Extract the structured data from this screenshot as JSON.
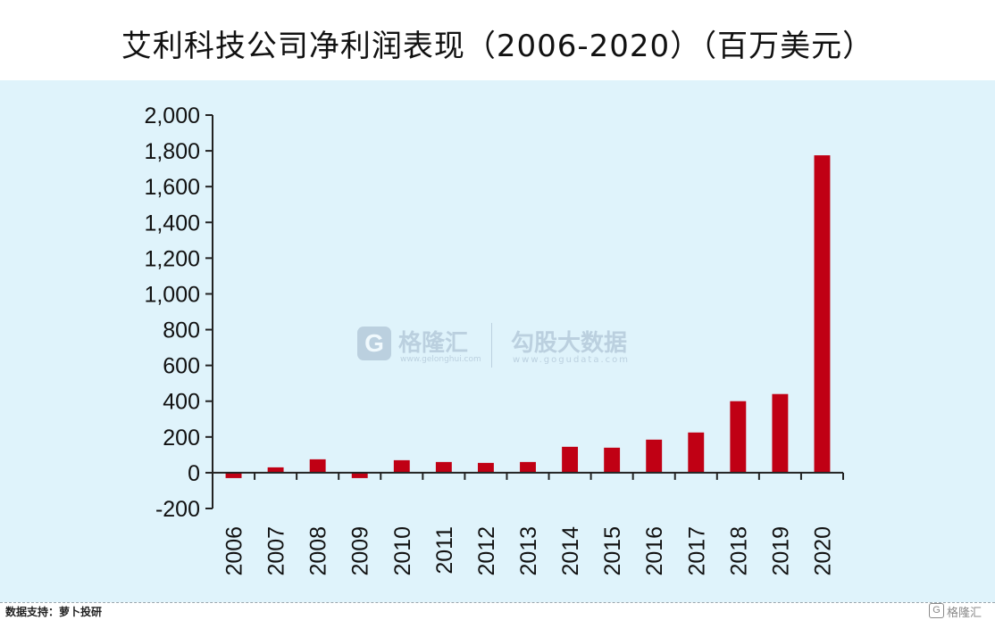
{
  "chart_data": {
    "type": "bar",
    "title": "艾利科技公司净利润表现（2006-2020）（百万美元）",
    "xlabel": "",
    "ylabel": "",
    "categories": [
      "2006",
      "2007",
      "2008",
      "2009",
      "2010",
      "2011",
      "2012",
      "2013",
      "2014",
      "2015",
      "2016",
      "2017",
      "2018",
      "2019",
      "2020"
    ],
    "values": [
      -30,
      30,
      75,
      -30,
      70,
      60,
      55,
      60,
      145,
      140,
      185,
      225,
      400,
      440,
      1775
    ],
    "ylim": [
      -200,
      2000
    ],
    "yticks": [
      -200,
      0,
      200,
      400,
      600,
      800,
      1000,
      1200,
      1400,
      1600,
      1800,
      2000
    ],
    "ytick_labels": [
      "-200",
      "0",
      "200",
      "400",
      "600",
      "800",
      "1,000",
      "1,200",
      "1,400",
      "1,600",
      "1,800",
      "2,000"
    ],
    "bar_color": "#c00014",
    "grid": false,
    "legend": "none"
  },
  "footer": {
    "source": "数据支持：萝卜投研"
  },
  "watermark": {
    "logo_letter": "G",
    "brand": "格隆汇",
    "brand_url": "www.gelonghui.com",
    "sub_brand": "勾股大数据",
    "sub_url": "www.gogudata.com",
    "corner": "格隆汇"
  }
}
